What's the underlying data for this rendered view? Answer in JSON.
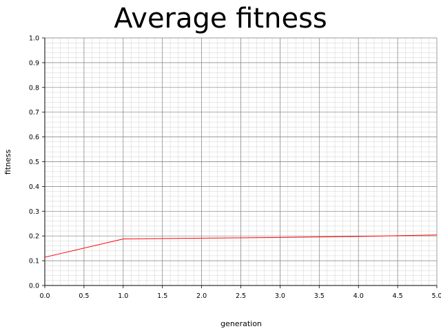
{
  "chart_data": {
    "type": "line",
    "title": "Average fitness",
    "xlabel": "generation",
    "ylabel": "fitness",
    "xlim": [
      0.0,
      5.0
    ],
    "ylim": [
      0.0,
      1.0
    ],
    "x_ticks": [
      "0.0",
      "0.5",
      "1.0",
      "1.5",
      "2.0",
      "2.5",
      "3.0",
      "3.5",
      "4.0",
      "4.5",
      "5.0"
    ],
    "y_ticks": [
      "0.0",
      "0.1",
      "0.2",
      "0.3",
      "0.4",
      "0.5",
      "0.6",
      "0.7",
      "0.8",
      "0.9",
      "1.0"
    ],
    "grid": true,
    "series": [
      {
        "color": "#ff0000",
        "x": [
          0,
          1,
          2,
          3,
          4,
          5
        ],
        "y": [
          0.114,
          0.188,
          0.191,
          0.194,
          0.198,
          0.204
        ]
      }
    ]
  }
}
